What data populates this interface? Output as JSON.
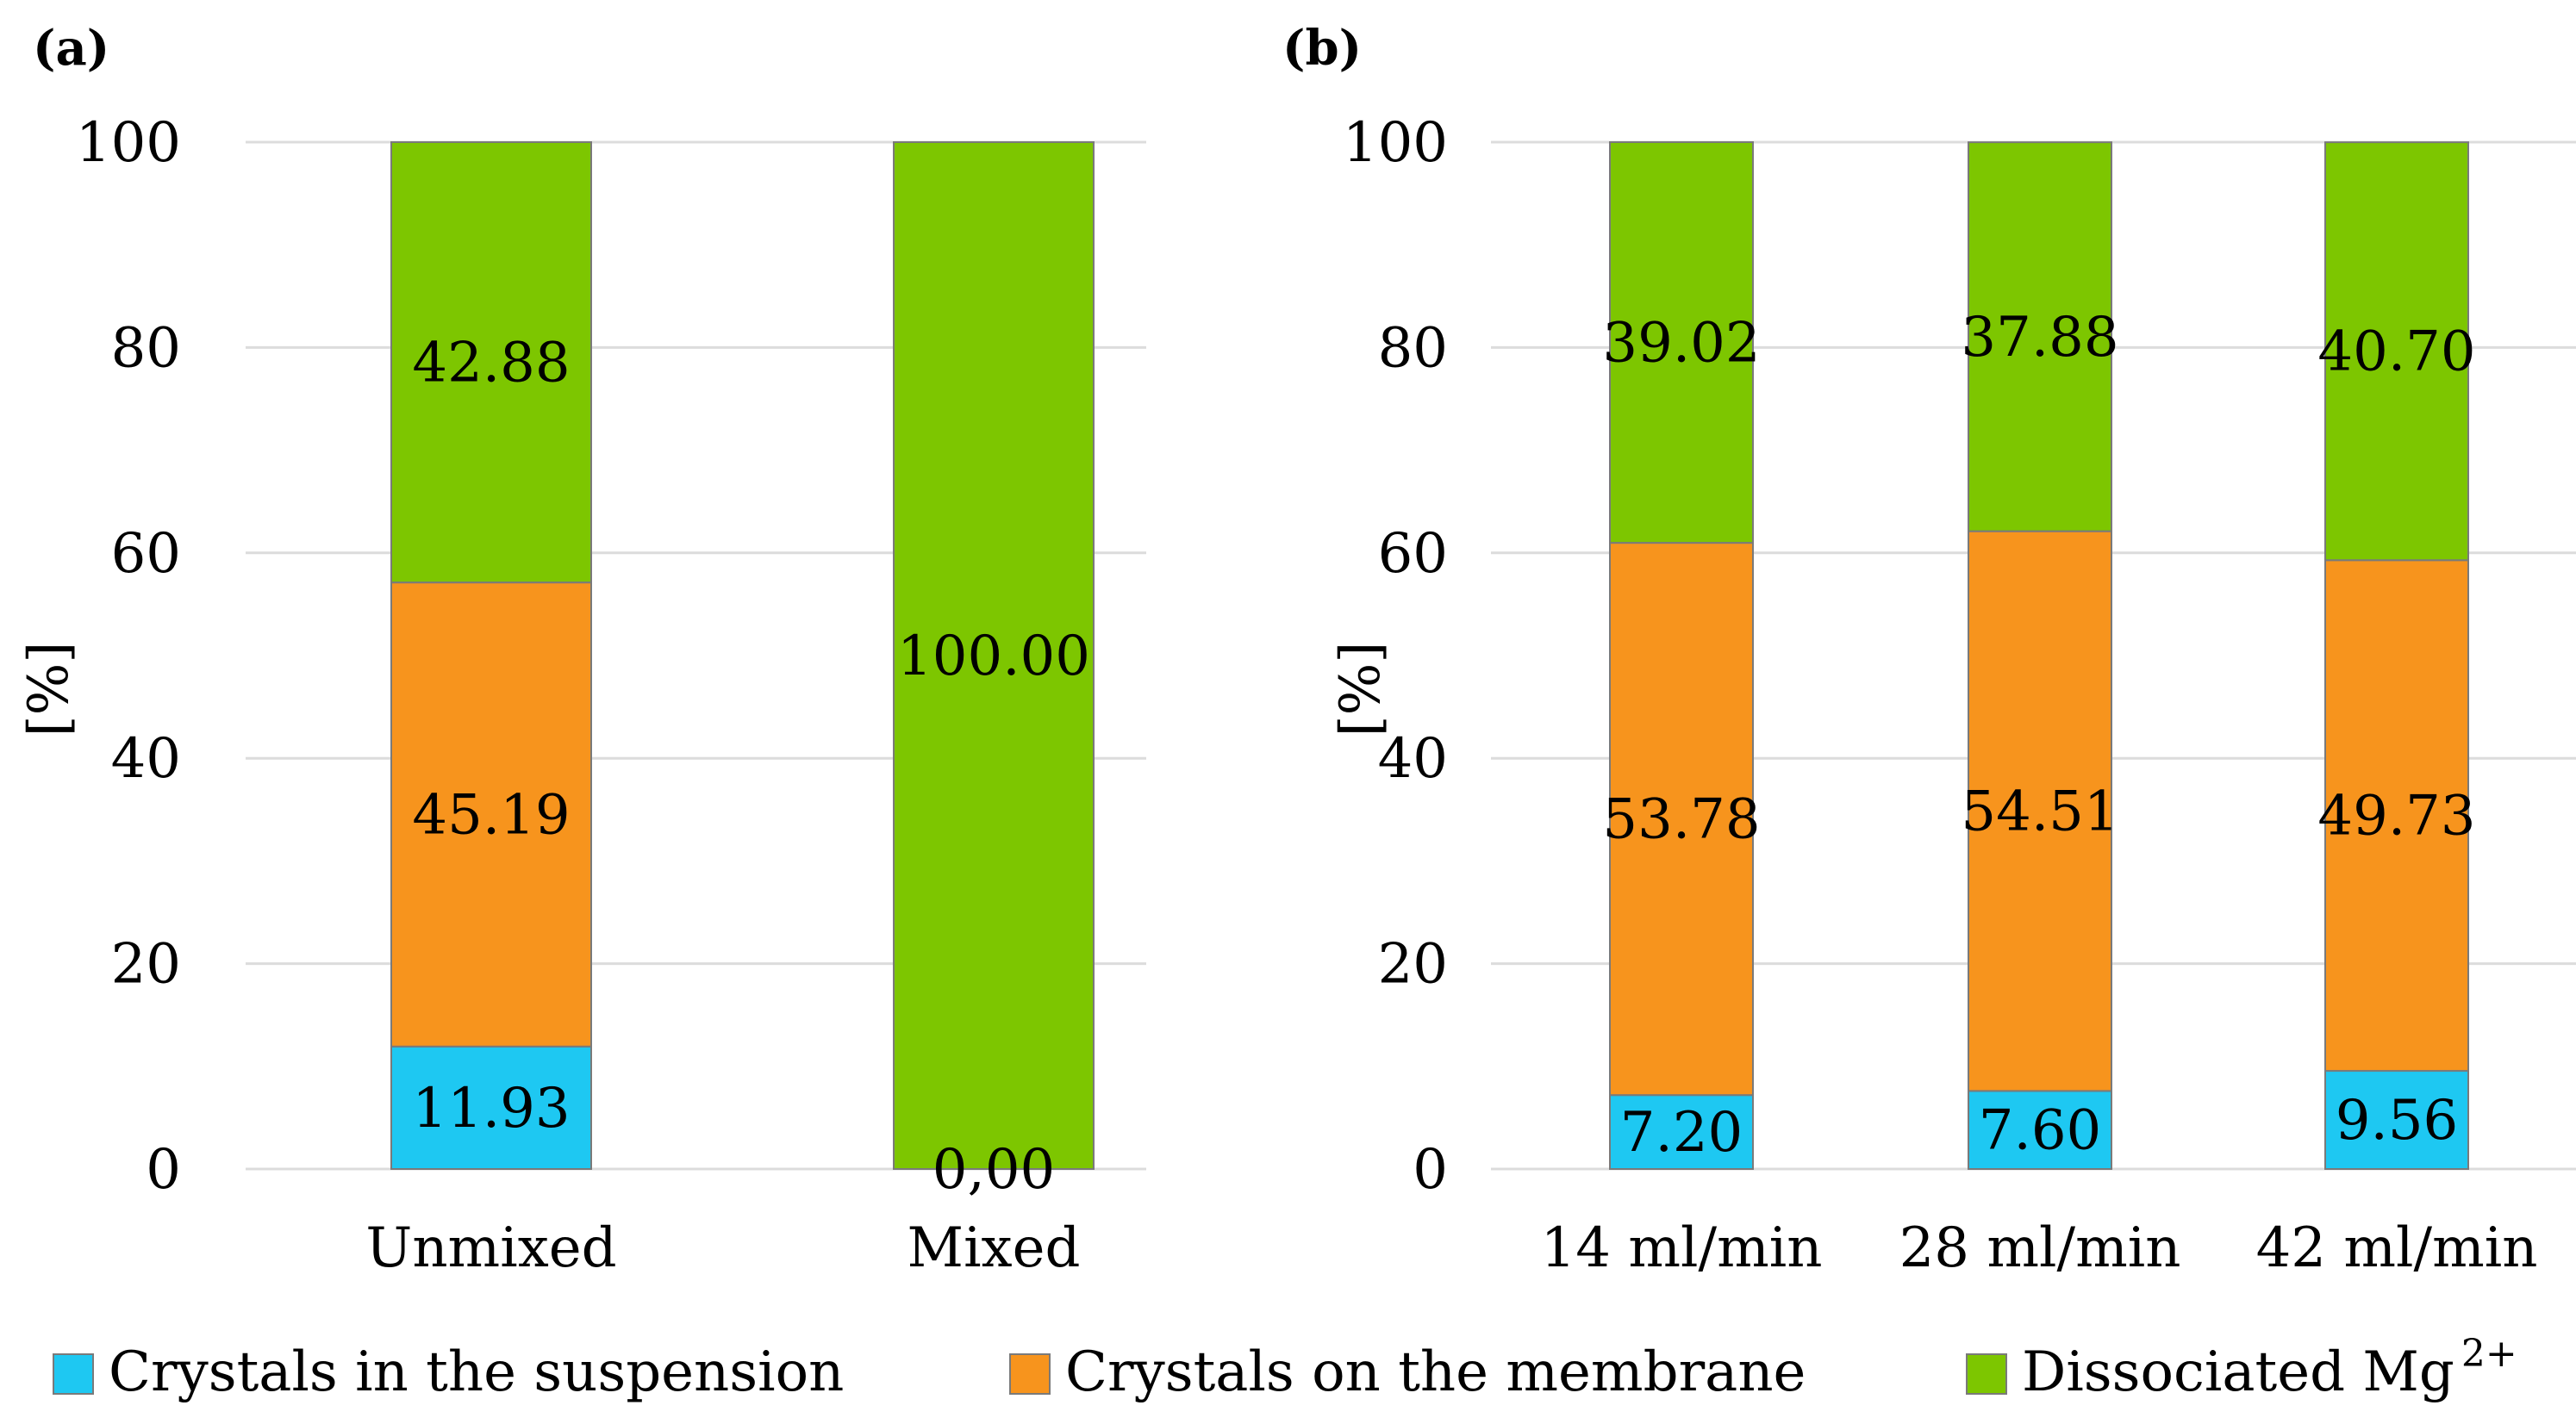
{
  "colors": {
    "suspension": "#1ec8f2",
    "membrane": "#f7941d",
    "dissociated": "#7dc600"
  },
  "legend": {
    "suspension": "Crystals in the suspension",
    "membrane": "Crystals on the membrane",
    "dissociated_base": "Dissociated Mg",
    "dissociated_sup": "2+"
  },
  "chart_data": [
    {
      "type": "bar",
      "stacked": true,
      "panel": "(a)",
      "ylabel": "[%]",
      "ylim": [
        0,
        100
      ],
      "yticks": [
        "0",
        "20",
        "40",
        "60",
        "80",
        "100"
      ],
      "grid": true,
      "categories": [
        "Unmixed",
        "Mixed"
      ],
      "series": [
        {
          "key": "suspension",
          "name": "Crystals in the suspension",
          "values": [
            11.93,
            0
          ],
          "labels": [
            "11.93",
            "0,00"
          ]
        },
        {
          "key": "membrane",
          "name": "Crystals on the membrane",
          "values": [
            45.19,
            0
          ],
          "labels": [
            "45.19",
            ""
          ]
        },
        {
          "key": "dissociated",
          "name": "Dissociated Mg2+",
          "values": [
            42.88,
            100
          ],
          "labels": [
            "42.88",
            "100.00"
          ]
        }
      ]
    },
    {
      "type": "bar",
      "stacked": true,
      "panel": "(b)",
      "ylabel": "[%]",
      "ylim": [
        0,
        100
      ],
      "yticks": [
        "0",
        "20",
        "40",
        "60",
        "80",
        "100"
      ],
      "grid": true,
      "categories": [
        "14 ml/min",
        "28 ml/min",
        "42 ml/min"
      ],
      "series": [
        {
          "key": "suspension",
          "name": "Crystals in the suspension",
          "values": [
            7.2,
            7.6,
            9.56
          ],
          "labels": [
            "7.20",
            "7.60",
            "9.56"
          ]
        },
        {
          "key": "membrane",
          "name": "Crystals on the membrane",
          "values": [
            53.78,
            54.51,
            49.73
          ],
          "labels": [
            "53.78",
            "54.51",
            "49.73"
          ]
        },
        {
          "key": "dissociated",
          "name": "Dissociated Mg2+",
          "values": [
            39.02,
            37.88,
            40.7
          ],
          "labels": [
            "39.02",
            "37.88",
            "40.70"
          ]
        }
      ]
    }
  ]
}
